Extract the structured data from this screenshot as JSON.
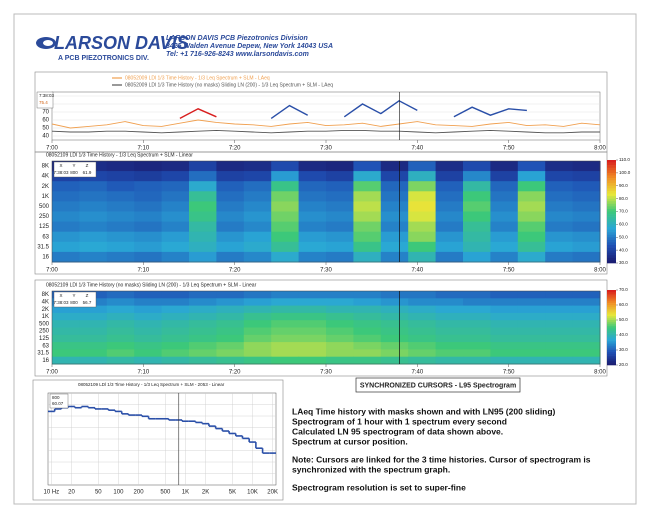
{
  "header": {
    "logo": "LARSON DAVIS",
    "logo_sub": "A PCB PIEZOTRONICS DIV.",
    "company": [
      "LARSON DAVIS  PCB Piezotronics Division",
      "3425 Walden Avenue Depew, New York 14043  USA",
      "Tel: +1 716-926-8243 www.larsondavis.com"
    ]
  },
  "synchronized_label": "SYNCHRONIZED CURSORS - L95 Spectrogram",
  "notes": [
    "LAeq Time history with masks shown and with LN95 (200 sliding)",
    "Spectrogram of 1 hour with 1 spectrum every second",
    "Calculated LN 95 spectrogram of data shown above.",
    "Spectrum at cursor position.",
    "Note: Cursors are linked for the 3 time histories. Cursor of spectrogram is",
    "synchronized with the spectrum graph.",
    "Spectrogram resolution is set to super-fine"
  ],
  "chart_data": [
    {
      "type": "line",
      "x": [
        "7:00",
        "7:02",
        "7:04",
        "7:06",
        "7:08",
        "7:10",
        "7:12",
        "7:14",
        "7:16",
        "7:18",
        "7:20",
        "7:22",
        "7:24",
        "7:26",
        "7:28",
        "7:30",
        "7:32",
        "7:34",
        "7:36",
        "7:38",
        "7:40",
        "7:42",
        "7:44",
        "7:46",
        "7:48",
        "7:50",
        "7:52",
        "7:54",
        "7:56",
        "7:58",
        "8:00"
      ],
      "xlim": [
        "7:00",
        "8:00"
      ],
      "xticks": [
        "7:00",
        "7:10",
        "7:20",
        "7:30",
        "7:40",
        "7:50",
        "8:00"
      ],
      "ylim": [
        35,
        95
      ],
      "yticks": [
        40,
        50,
        60,
        70,
        80,
        90
      ],
      "series": [
        {
          "name": "08052009 LDl 1/3 Time History - 1/3 Leq Spectrum + SLM - LAeq",
          "color": "#f0a050",
          "values": [
            55,
            50,
            52,
            54,
            58,
            53,
            52,
            56,
            60,
            57,
            55,
            54,
            52,
            55,
            57,
            53,
            54,
            56,
            52,
            55,
            58,
            54,
            53,
            52,
            55,
            57,
            53,
            54,
            52,
            56,
            54
          ]
        },
        {
          "name": "08052009 LDl 1/3 Time History (no masks) Sliding LN (200) - 1/3 Leq Spectrum + SLM - LAeq",
          "color": "#555555",
          "values": [
            46,
            45,
            45,
            46,
            46,
            45,
            44,
            45,
            46,
            47,
            46,
            45,
            44,
            45,
            46,
            46,
            47,
            47,
            46,
            46,
            45,
            44,
            45,
            46,
            47,
            46,
            45,
            44,
            44,
            45,
            45
          ]
        },
        {
          "color": "#2a4fa8",
          "values": [
            null,
            null,
            null,
            null,
            null,
            null,
            null,
            null,
            null,
            null,
            null,
            null,
            62,
            78,
            66,
            null,
            64,
            80,
            68,
            84,
            72,
            null,
            64,
            76,
            66,
            74,
            72,
            null,
            null,
            null,
            null
          ]
        },
        {
          "color": "#d81e1e",
          "values": [
            null,
            null,
            null,
            null,
            null,
            null,
            null,
            62,
            74,
            64,
            null,
            null,
            null,
            null,
            null,
            null,
            null,
            null,
            null,
            null,
            null,
            null,
            null,
            null,
            null,
            null,
            null,
            null,
            null,
            null,
            null
          ]
        }
      ],
      "cursor": {
        "x": "7:38:03",
        "value": "75.4"
      }
    },
    {
      "type": "heatmap",
      "title": "08052109 LDl 1/3 Time History - 1/3 Leq Spectrum + SLM - Linear",
      "xlim": [
        "7:00",
        "8:00"
      ],
      "xticks": [
        "7:00",
        "7:10",
        "7:20",
        "7:30",
        "7:40",
        "7:50",
        "8:00"
      ],
      "rows": [
        "8K",
        "4K",
        "2K",
        "1K",
        "500",
        "250",
        "125",
        "63",
        "31.5",
        "16"
      ],
      "z": [
        [
          34,
          35,
          34,
          33,
          34,
          40,
          34,
          35,
          42,
          34,
          33,
          44,
          34,
          46,
          35,
          42,
          34,
          44,
          35,
          34
        ],
        [
          40,
          41,
          40,
          39,
          41,
          48,
          40,
          41,
          55,
          42,
          40,
          58,
          41,
          60,
          40,
          52,
          40,
          56,
          41,
          40
        ],
        [
          46,
          47,
          45,
          46,
          47,
          58,
          46,
          48,
          68,
          47,
          46,
          72,
          47,
          75,
          46,
          64,
          47,
          70,
          46,
          45
        ],
        [
          48,
          49,
          48,
          47,
          49,
          66,
          48,
          50,
          74,
          49,
          48,
          78,
          49,
          82,
          48,
          70,
          49,
          76,
          48,
          47
        ],
        [
          50,
          51,
          50,
          49,
          51,
          70,
          50,
          52,
          76,
          51,
          50,
          80,
          51,
          84,
          50,
          72,
          51,
          78,
          50,
          49
        ],
        [
          52,
          53,
          52,
          51,
          53,
          68,
          52,
          54,
          74,
          53,
          52,
          78,
          53,
          82,
          52,
          70,
          53,
          76,
          52,
          51
        ],
        [
          50,
          51,
          50,
          49,
          51,
          64,
          50,
          52,
          72,
          51,
          50,
          74,
          51,
          78,
          50,
          66,
          51,
          72,
          50,
          49
        ],
        [
          54,
          55,
          54,
          53,
          55,
          62,
          54,
          56,
          70,
          55,
          54,
          72,
          55,
          76,
          54,
          64,
          55,
          70,
          54,
          53
        ],
        [
          56,
          57,
          56,
          55,
          57,
          60,
          56,
          58,
          66,
          57,
          56,
          68,
          57,
          70,
          56,
          62,
          57,
          66,
          56,
          55
        ],
        [
          50,
          51,
          50,
          49,
          51,
          55,
          50,
          52,
          58,
          51,
          50,
          60,
          51,
          62,
          50,
          56,
          51,
          58,
          50,
          49
        ]
      ],
      "zlim": [
        30,
        110
      ],
      "zticks": [
        {
          "value": 110,
          "label": "110.0"
        },
        {
          "value": 100,
          "label": "100.0"
        },
        {
          "value": 90,
          "label": "90.0"
        },
        {
          "value": 80,
          "label": "80.0"
        },
        {
          "value": 70,
          "label": "70.0"
        },
        {
          "value": 60,
          "label": "60.0"
        },
        {
          "value": 50,
          "label": "50.0"
        },
        {
          "value": 40,
          "label": "40.0"
        },
        {
          "value": 30,
          "label": "30.0"
        }
      ],
      "cursor": {
        "labels": [
          "X",
          "Y",
          "Z"
        ],
        "values": [
          "7:38:03",
          "800",
          "61.9"
        ]
      }
    },
    {
      "type": "heatmap",
      "title": "08052109 LDl 1/3 Time History (no masks) Sliding LN (200) - 1/3 Leq Spectrum + SLM - Linear",
      "xlim": [
        "7:00",
        "8:00"
      ],
      "xticks": [
        "7:00",
        "7:10",
        "7:20",
        "7:30",
        "7:40",
        "7:50",
        "8:00"
      ],
      "rows": [
        "8K",
        "4K",
        "2K",
        "1K",
        "500",
        "250",
        "125",
        "63",
        "31.5",
        "16"
      ],
      "z": [
        [
          30,
          30,
          31,
          30,
          30,
          31,
          31,
          32,
          33,
          33,
          33,
          33,
          32,
          32,
          31,
          31,
          30,
          30,
          30,
          30
        ],
        [
          33,
          33,
          34,
          33,
          33,
          34,
          35,
          36,
          37,
          37,
          37,
          36,
          35,
          34,
          34,
          33,
          33,
          33,
          33,
          33
        ],
        [
          36,
          36,
          37,
          36,
          37,
          38,
          39,
          40,
          41,
          41,
          40,
          40,
          39,
          38,
          37,
          37,
          36,
          36,
          36,
          36
        ],
        [
          38,
          38,
          39,
          38,
          39,
          40,
          41,
          43,
          44,
          44,
          43,
          42,
          41,
          40,
          39,
          39,
          38,
          38,
          38,
          38
        ],
        [
          40,
          40,
          41,
          40,
          41,
          42,
          43,
          45,
          46,
          46,
          45,
          44,
          43,
          42,
          41,
          41,
          40,
          40,
          40,
          40
        ],
        [
          41,
          41,
          42,
          41,
          42,
          43,
          44,
          46,
          47,
          47,
          46,
          45,
          44,
          43,
          42,
          42,
          41,
          41,
          41,
          41
        ],
        [
          42,
          42,
          43,
          42,
          43,
          44,
          45,
          47,
          48,
          48,
          47,
          46,
          45,
          44,
          43,
          43,
          42,
          42,
          42,
          42
        ],
        [
          44,
          44,
          45,
          44,
          45,
          46,
          47,
          49,
          50,
          50,
          49,
          48,
          47,
          46,
          45,
          45,
          44,
          44,
          44,
          44
        ],
        [
          45,
          45,
          46,
          45,
          46,
          47,
          48,
          49,
          50,
          50,
          49,
          49,
          48,
          47,
          46,
          46,
          45,
          45,
          45,
          45
        ],
        [
          40,
          40,
          41,
          40,
          41,
          42,
          43,
          44,
          45,
          45,
          44,
          44,
          43,
          42,
          41,
          41,
          40,
          40,
          40,
          40
        ]
      ],
      "zlim": [
        20,
        70
      ],
      "zticks": [
        {
          "value": 70,
          "label": "70.0"
        },
        {
          "value": 60,
          "label": "60.0"
        },
        {
          "value": 50,
          "label": "50.0"
        },
        {
          "value": 40,
          "label": "40.0"
        },
        {
          "value": 30,
          "label": "30.0"
        },
        {
          "value": 20,
          "label": "20.0"
        }
      ],
      "cursor": {
        "labels": [
          "X",
          "Y",
          "Z"
        ],
        "values": [
          "7:38:03",
          "800",
          "56.7"
        ]
      }
    },
    {
      "type": "step",
      "title": "08052109 LDl 1/3 Time History - 1/3 Leq Spectrum + SLM - 2053 - Linear",
      "categories": [
        "10 Hz",
        null,
        null,
        "20",
        null,
        null,
        null,
        "50",
        null,
        null,
        "100",
        null,
        null,
        "200",
        null,
        null,
        null,
        "500",
        null,
        null,
        "1K",
        null,
        null,
        "2K",
        null,
        null,
        null,
        "5K",
        null,
        null,
        "10K",
        null,
        null,
        "20K"
      ],
      "values": [
        80,
        82,
        83,
        84,
        83,
        84,
        83,
        82,
        82,
        81,
        80,
        78,
        77,
        77,
        76,
        74,
        74,
        74,
        73,
        73,
        72,
        72,
        71,
        70,
        68,
        66,
        64,
        62,
        60,
        58,
        55,
        50,
        46,
        46
      ],
      "color": "#2a4fa8",
      "ylim": [
        20,
        95
      ],
      "cursor": {
        "labels": [
          "800",
          "60.07"
        ]
      }
    }
  ]
}
